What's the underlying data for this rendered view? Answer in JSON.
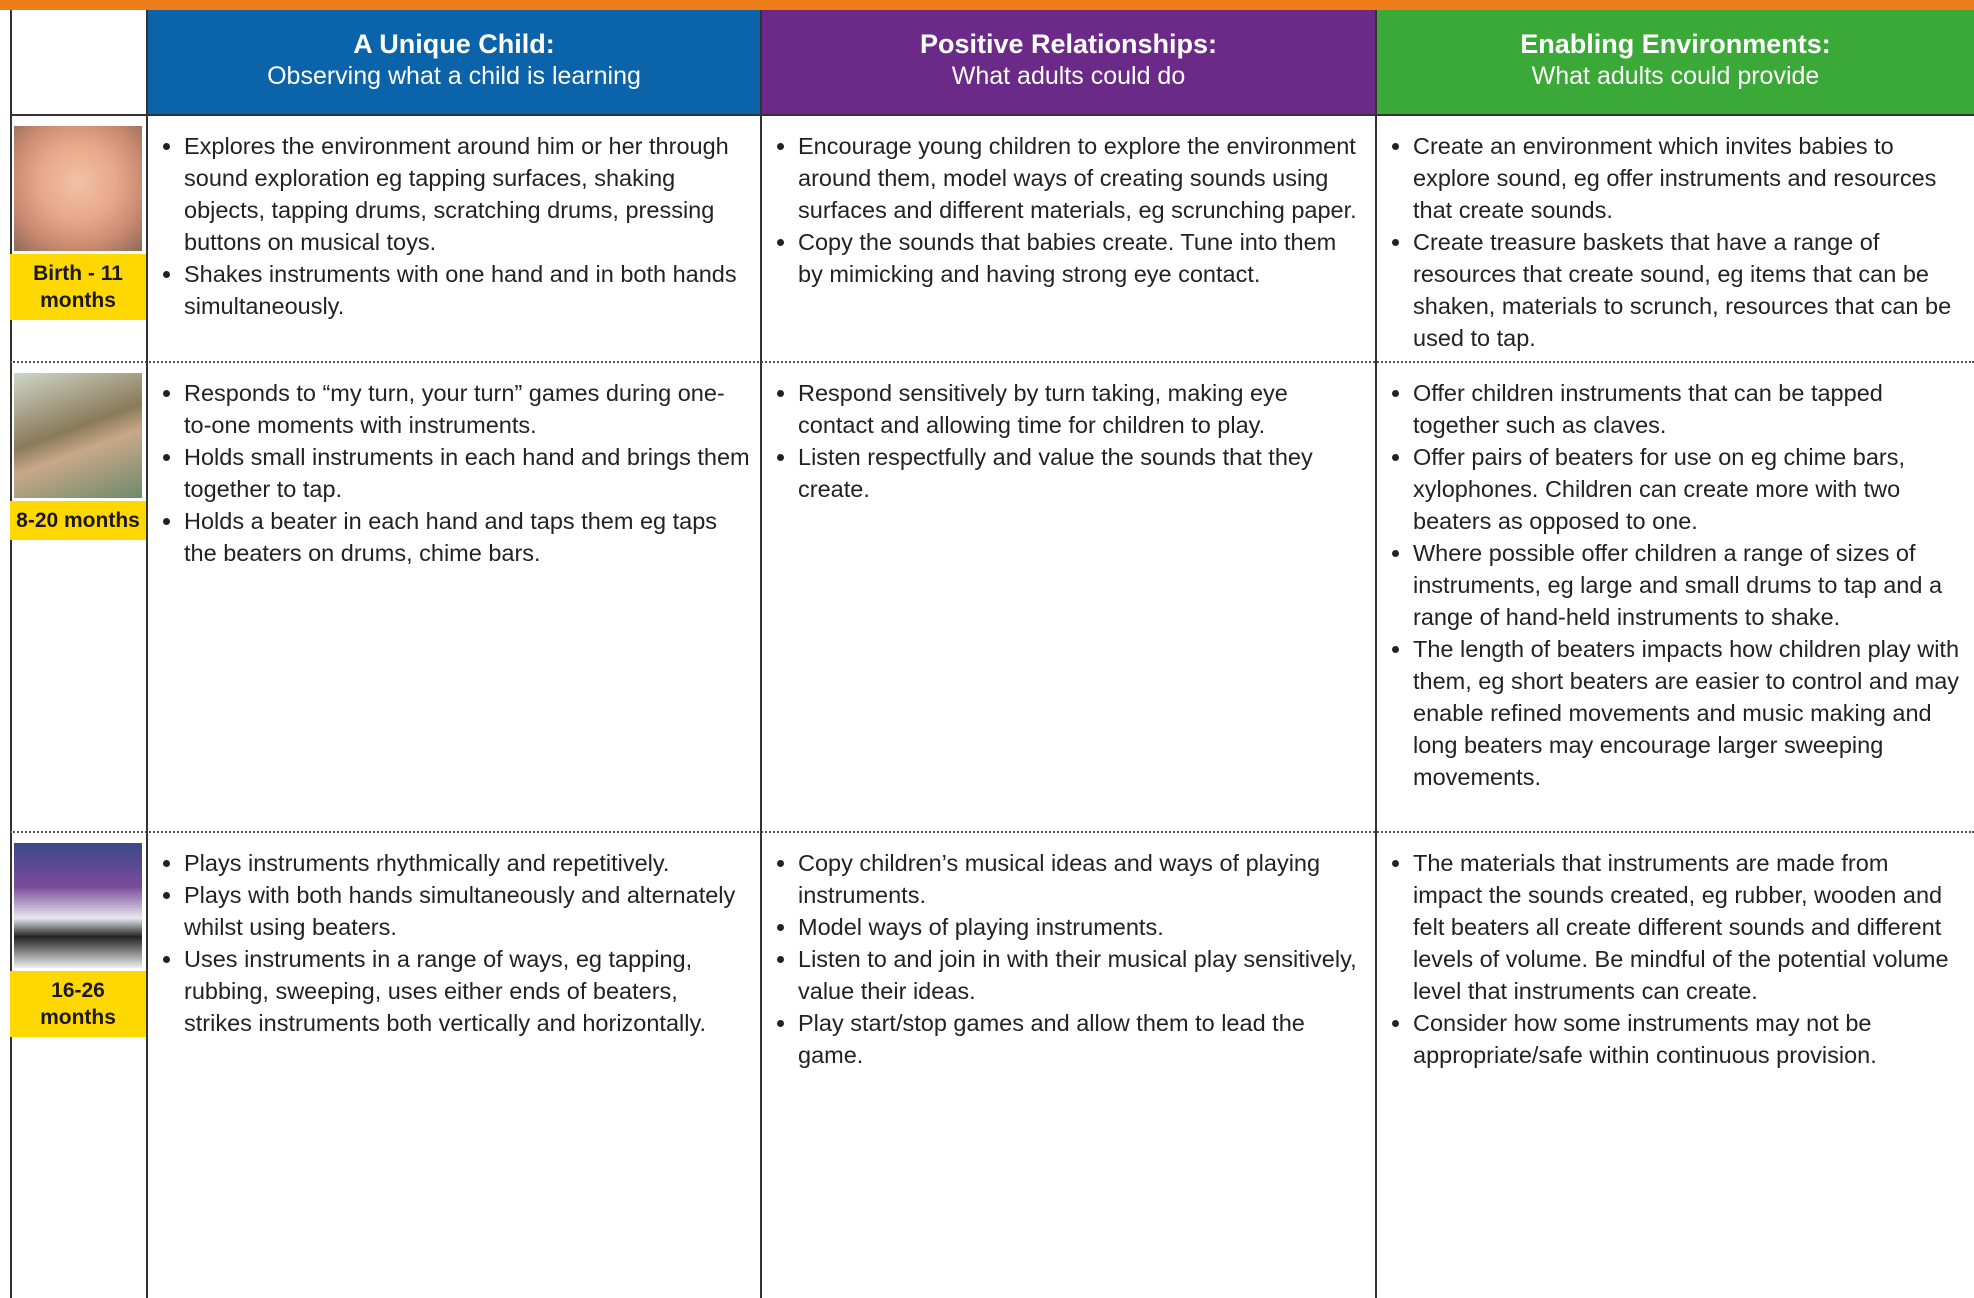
{
  "header": {
    "columns": [
      {
        "title": "A Unique Child:",
        "subtitle": "Observing what a child is learning"
      },
      {
        "title": "Positive Relationships:",
        "subtitle": "What adults could do"
      },
      {
        "title": "Enabling Environments:",
        "subtitle": "What adults could provide"
      }
    ]
  },
  "rows": [
    {
      "age": "Birth - 11 months",
      "cells": [
        [
          "Explores the environment around him or her through sound exploration eg tapping surfaces, shaking objects, tapping drums, scratching drums, pressing buttons on musical toys.",
          "Shakes instruments with one hand and in both hands simultaneously."
        ],
        [
          "Encourage young children to explore the environment around them, model ways of creating sounds using surfaces and different materials, eg scrunching paper.",
          "Copy the sounds that babies create. Tune into them by mimicking and having strong eye contact."
        ],
        [
          "Create an environment which invites babies to explore sound, eg offer instruments and resources that create sounds.",
          "Create treasure baskets that have a range of resources that create sound, eg items that can be shaken, materials to scrunch, resources that can be used to tap."
        ]
      ]
    },
    {
      "age": "8-20 months",
      "cells": [
        [
          "Responds to “my turn, your turn” games during one-to-one moments with instruments.",
          "Holds small instruments in each hand and brings them together to tap.",
          "Holds a beater in each hand and taps them eg taps the beaters on drums, chime bars."
        ],
        [
          "Respond sensitively by turn taking, making eye contact and allowing time for children to play.",
          "Listen respectfully and value the sounds that they create."
        ],
        [
          "Offer children instruments that can be tapped together such as claves.",
          "Offer pairs of beaters for use on eg chime bars, xylophones. Children can create more with two beaters as opposed to one.",
          "Where possible offer children a range of sizes of instruments, eg large and small drums to tap and a range of hand-held instruments to shake.",
          "The length of beaters impacts how children play with them, eg short beaters are easier to control and may enable refined movements and music making and long beaters may encourage larger sweeping movements."
        ]
      ]
    },
    {
      "age": "16-26 months",
      "cells": [
        [
          "Plays instruments rhythmically and repetitively.",
          "Plays with both hands simultaneously and alternately whilst using beaters.",
          "Uses instruments in a range of ways, eg tapping, rubbing, sweeping, uses either ends of beaters, strikes instruments both vertically and horizontally."
        ],
        [
          "Copy children’s musical ideas and ways of playing instruments.",
          "Model ways of playing instruments.",
          "Listen to and join in with their musical play sensitively, value their ideas.",
          "Play start/stop games and allow them to lead the game."
        ],
        [
          "The materials that instruments are made from impact the sounds created, eg rubber, wooden and felt beaters all create different sounds and different levels of volume. Be mindful of the potential volume level that instruments can create.",
          "Consider how some instruments may not be appropriate/safe within continuous provision."
        ]
      ]
    }
  ]
}
